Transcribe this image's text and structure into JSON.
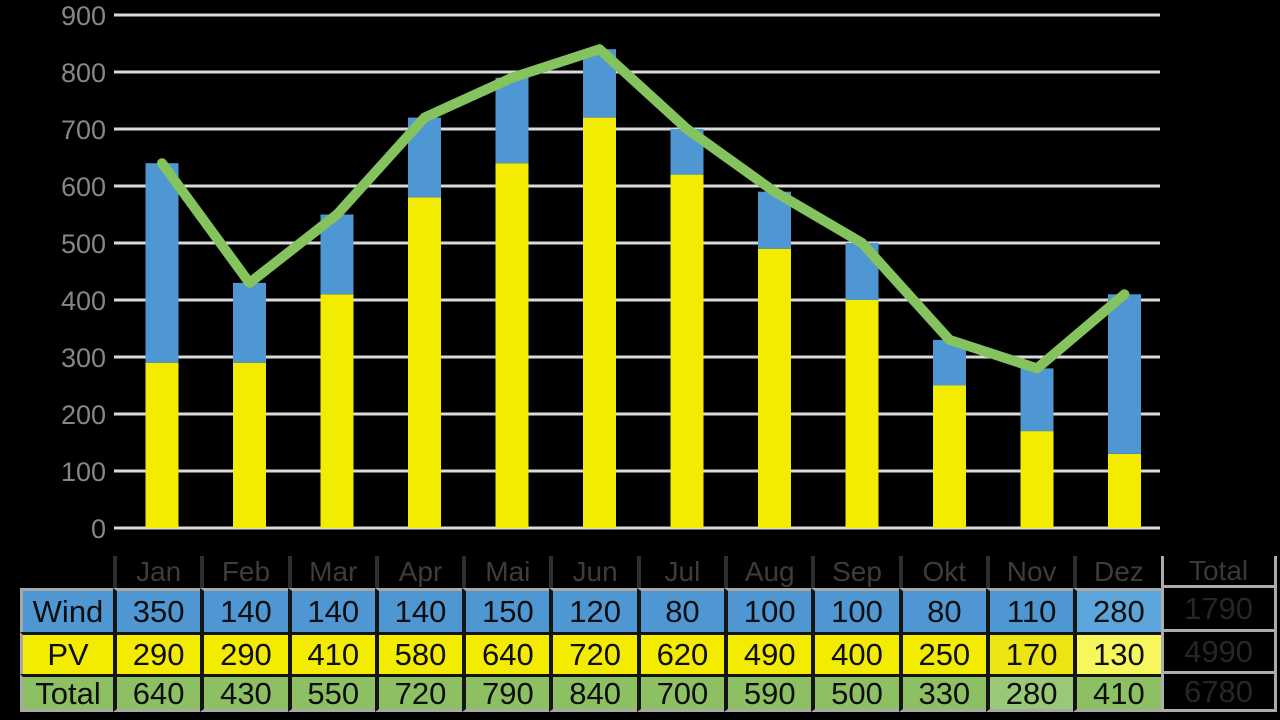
{
  "chart_data": {
    "type": "combo",
    "title": "",
    "categories": [
      "Jan",
      "Feb",
      "Mar",
      "Apr",
      "Mai",
      "Jun",
      "Jul",
      "Aug",
      "Sep",
      "Okt",
      "Nov",
      "Dez"
    ],
    "series": [
      {
        "name": "Wind",
        "type": "bar",
        "stacked": true,
        "color": "#4E97D3",
        "values": [
          350,
          140,
          140,
          140,
          150,
          120,
          80,
          100,
          100,
          80,
          110,
          280
        ]
      },
      {
        "name": "PV",
        "type": "bar",
        "stacked": true,
        "color": "#F3EB00",
        "values": [
          290,
          290,
          410,
          580,
          640,
          720,
          620,
          490,
          400,
          250,
          170,
          130
        ]
      },
      {
        "name": "Total",
        "type": "line",
        "color": "#84C35D",
        "values": [
          640,
          430,
          550,
          720,
          790,
          840,
          700,
          590,
          500,
          330,
          280,
          410
        ]
      }
    ],
    "ylim": [
      0,
      900
    ],
    "ytick_step": 100,
    "yticks": [
      0,
      100,
      200,
      300,
      400,
      500,
      600,
      700,
      800,
      900
    ],
    "grid": true,
    "legend": "none",
    "colors": {
      "grid": "#DADADA",
      "axis_labels": "#868686"
    }
  },
  "table": {
    "column_headers": [
      "Jan",
      "Feb",
      "Mar",
      "Apr",
      "Mai",
      "Jun",
      "Jul",
      "Aug",
      "Sep",
      "Okt",
      "Nov",
      "Dez"
    ],
    "total_header": "Total",
    "rows": [
      {
        "label": "Wind",
        "color": "#4E97D3",
        "values": [
          350,
          140,
          140,
          140,
          150,
          120,
          80,
          100,
          100,
          80,
          110,
          280
        ],
        "total": 1790
      },
      {
        "label": "PV",
        "color": "#F3EB00",
        "values": [
          290,
          290,
          410,
          580,
          640,
          720,
          620,
          490,
          400,
          250,
          170,
          130
        ],
        "total": 4990
      },
      {
        "label": "Total",
        "color": "#8CC063",
        "values": [
          640,
          430,
          550,
          720,
          790,
          840,
          700,
          590,
          500,
          330,
          280,
          410
        ],
        "total": 6780
      }
    ],
    "cell_highlights": [
      {
        "row": 0,
        "col": 11,
        "style": "dots-light",
        "color": "#5CA5DA"
      },
      {
        "row": 1,
        "col": 10,
        "style": "dots-dark",
        "color": "#EDE414"
      },
      {
        "row": 1,
        "col": 11,
        "style": "lighter",
        "color": "#F7F65C"
      },
      {
        "row": 2,
        "col": 10,
        "style": "dots-light",
        "color": "#98C878"
      }
    ]
  }
}
